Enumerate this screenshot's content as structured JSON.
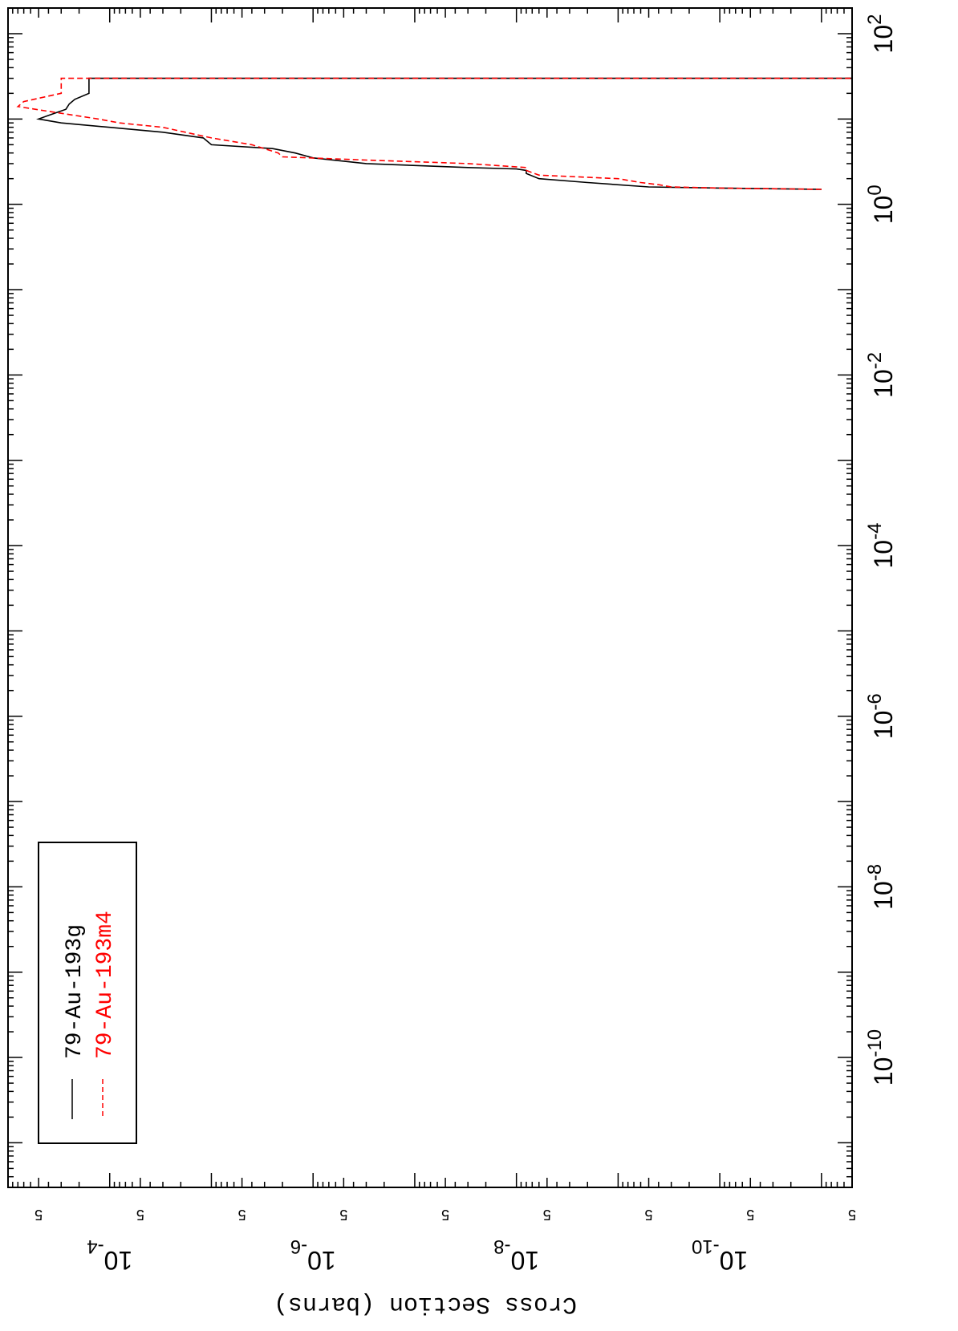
{
  "chart_data": {
    "type": "line",
    "orientation": "rotated-90-clockwise",
    "title": "",
    "xlabel": "",
    "ylabel": "Cross Section (barns)",
    "x_scale": "log",
    "y_scale": "log",
    "xlim": [
      3e-12,
      200
    ],
    "ylim": [
      5e-12,
      0.001
    ],
    "x_tick_labels": [
      "10-10",
      "10-8",
      "10-6",
      "10-4",
      "10-2",
      "100",
      "102"
    ],
    "y_tick_labels": [
      "10-10",
      "10-8",
      "10-6",
      "10-4"
    ],
    "y_minor_label": "5",
    "grid": false,
    "legend": {
      "placement": "top-left",
      "entries": [
        "79-Au-193g",
        "79-Au-193m4"
      ]
    },
    "colors": {
      "series_1": "#000000",
      "series_2": "#ff0000"
    },
    "series": [
      {
        "name": "79-Au-193g",
        "style": "solid",
        "x": [
          1.5,
          1.55,
          1.6,
          1.8,
          2.0,
          2.3,
          2.5,
          2.6,
          2.7,
          3.0,
          3.5,
          4.0,
          4.5,
          5.0,
          6.0,
          7.0,
          8.0,
          9.0,
          10.0,
          11.0,
          13.0,
          15.0,
          17.0,
          20.0,
          30.0,
          30.0
        ],
        "y": [
          1e-11,
          1e-10,
          5e-10,
          2e-09,
          6e-09,
          8e-09,
          8e-09,
          1e-08,
          3e-08,
          3e-07,
          1e-06,
          1.5e-06,
          2.5e-06,
          1e-05,
          1.2e-05,
          3e-05,
          0.0001,
          0.0003,
          0.0005,
          0.0004,
          0.00027,
          0.00025,
          0.00022,
          0.00016,
          0.00016,
          5e-12
        ]
      },
      {
        "name": "79-Au-193m4",
        "style": "dashed",
        "x": [
          1.5,
          1.55,
          1.6,
          1.7,
          1.8,
          2.0,
          2.2,
          2.5,
          2.7,
          3.0,
          3.3,
          3.6,
          4.0,
          5.0,
          6.0,
          8.0,
          9.0,
          10.0,
          12.0,
          14.0,
          16.0,
          20.0,
          30.0,
          30.0
        ],
        "y": [
          1e-11,
          1e-10,
          3e-10,
          4e-10,
          6e-10,
          1e-09,
          6e-09,
          8e-09,
          8e-09,
          3e-08,
          3e-07,
          2e-06,
          2.2e-06,
          4e-06,
          1e-05,
          3e-05,
          8e-05,
          0.00013,
          0.00035,
          0.0008,
          0.0007,
          0.0003,
          0.0003,
          5e-12
        ]
      }
    ]
  }
}
